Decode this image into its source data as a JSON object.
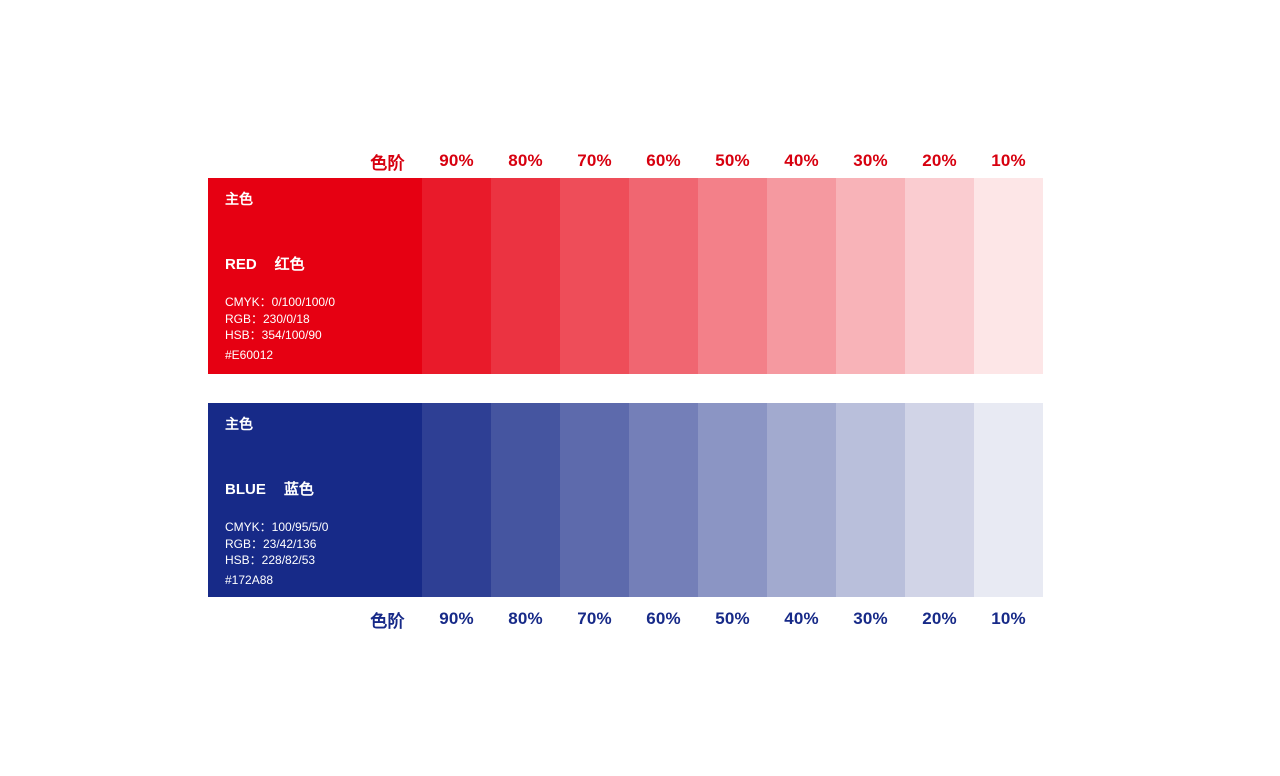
{
  "scale_labels": [
    "色阶",
    "90%",
    "80%",
    "70%",
    "60%",
    "50%",
    "40%",
    "30%",
    "20%",
    "10%"
  ],
  "blocks": [
    {
      "id": "red",
      "category_label": "主色",
      "name_en": "RED",
      "name_cn": "红色",
      "cmyk": "CMYK：0/100/100/0",
      "rgb": "RGB：230/0/18",
      "hsb": "HSB：354/100/90",
      "hex": "#E60012",
      "base_color": "#E60012",
      "label_color": "#D7000F",
      "swatches": [
        "#E60012",
        "#E91A2A",
        "#EB3341",
        "#EE4D59",
        "#F06671",
        "#F38089",
        "#F599A0",
        "#F8B3B8",
        "#FACCD0",
        "#FDE6E7"
      ]
    },
    {
      "id": "blue",
      "category_label": "主色",
      "name_en": "BLUE",
      "name_cn": "蓝色",
      "cmyk": "CMYK：100/95/5/0",
      "rgb": "RGB：23/42/136",
      "hsb": "HSB：228/82/53",
      "hex": "#172A88",
      "base_color": "#172A88",
      "label_color": "#172A88",
      "swatches": [
        "#172A88",
        "#2E3F94",
        "#4555A0",
        "#5D6AAC",
        "#747FB8",
        "#8B95C4",
        "#A2AACF",
        "#B9BFDB",
        "#D1D4E7",
        "#E8EAF3"
      ]
    }
  ]
}
